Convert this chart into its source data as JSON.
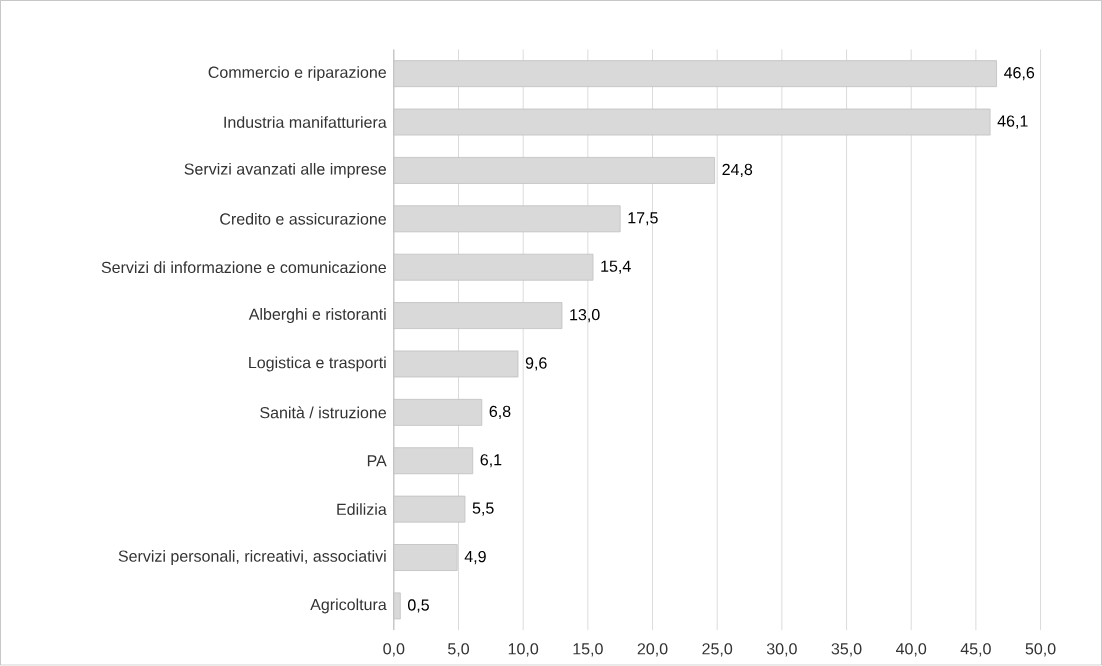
{
  "chart_data": {
    "type": "bar",
    "orientation": "horizontal",
    "categories": [
      "Commercio e riparazione",
      "Industria manifatturiera",
      "Servizi avanzati alle imprese",
      "Credito e assicurazione",
      "Servizi di informazione e comunicazione",
      "Alberghi e ristoranti",
      "Logistica e trasporti",
      "Sanità / istruzione",
      "PA",
      "Edilizia",
      "Servizi personali, ricreativi, associativi",
      "Agricoltura"
    ],
    "values": [
      46.6,
      46.1,
      24.8,
      17.5,
      15.4,
      13.0,
      9.6,
      6.8,
      6.1,
      5.5,
      4.9,
      0.5
    ],
    "value_labels": [
      "46,6",
      "46,1",
      "24,8",
      "17,5",
      "15,4",
      "13,0",
      "9,6",
      "6,8",
      "6,1",
      "5,5",
      "4,9",
      "0,5"
    ],
    "color": "#d9d9d9",
    "xlim": [
      0,
      50
    ],
    "xticks": [
      {
        "value": 0,
        "label": "0,0"
      },
      {
        "value": 5,
        "label": "5,0"
      },
      {
        "value": 10,
        "label": "10,0"
      },
      {
        "value": 15,
        "label": "15,0"
      },
      {
        "value": 20,
        "label": "20,0"
      },
      {
        "value": 25,
        "label": "25,0"
      },
      {
        "value": 30,
        "label": "30,0"
      },
      {
        "value": 35,
        "label": "35,0"
      },
      {
        "value": 40,
        "label": "40,0"
      },
      {
        "value": 45,
        "label": "45,0"
      },
      {
        "value": 50,
        "label": "50,0"
      }
    ],
    "grid": "x"
  }
}
